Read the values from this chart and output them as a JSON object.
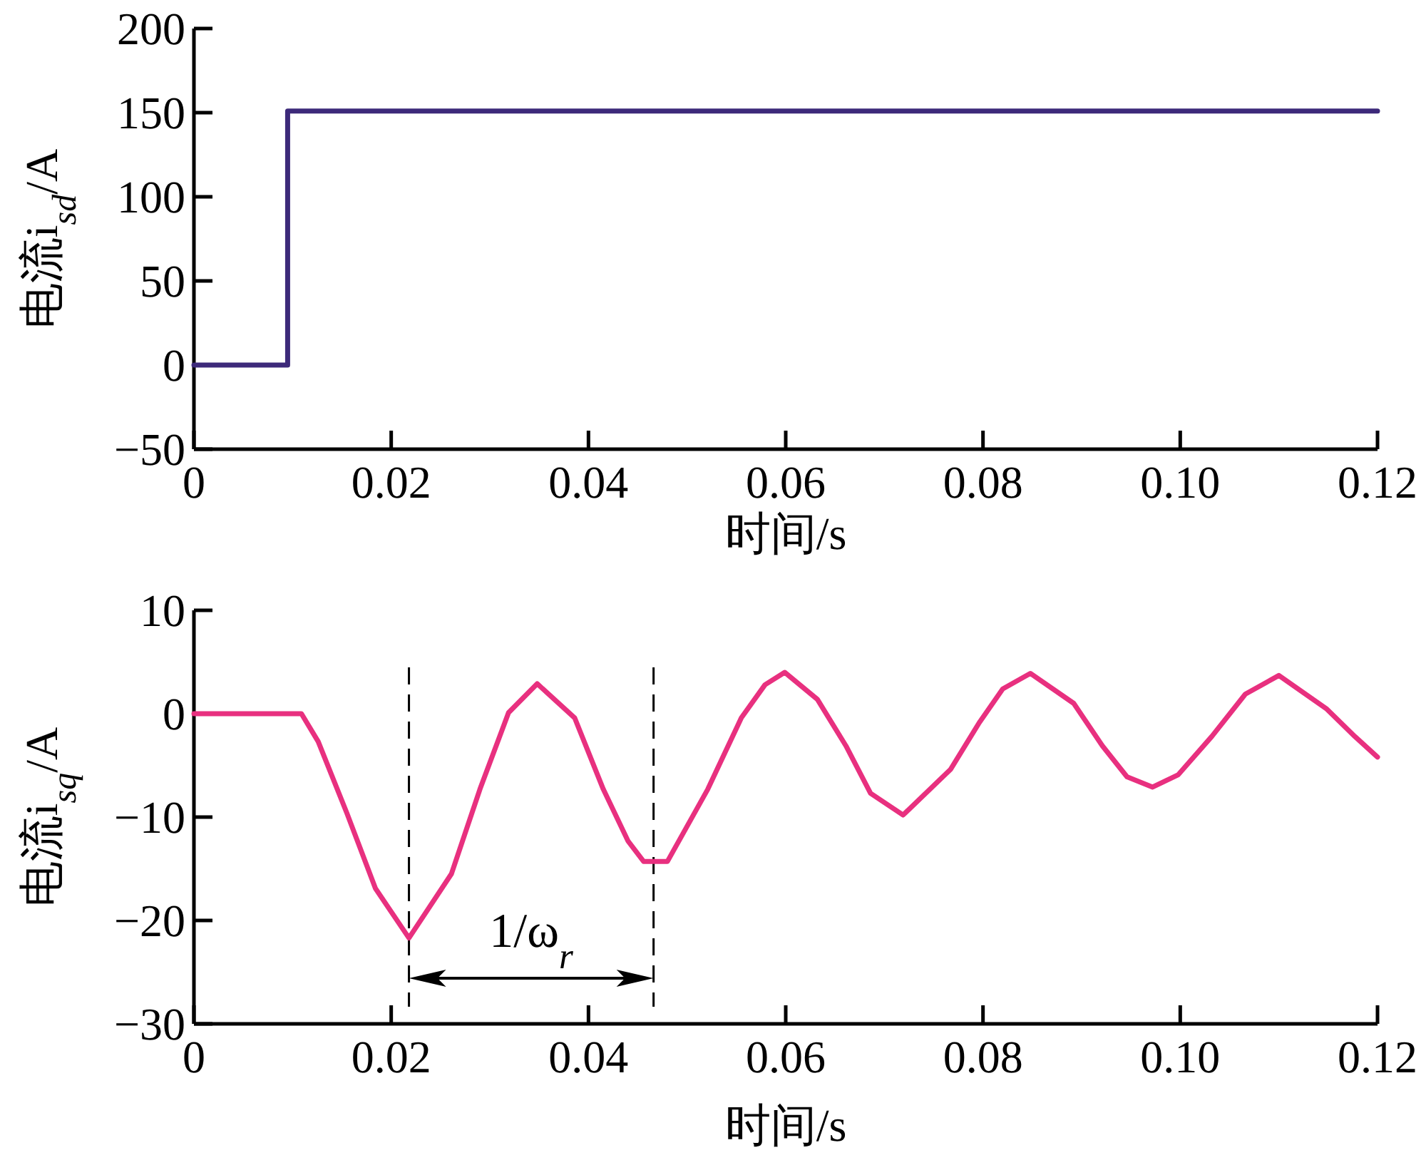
{
  "chart_data": [
    {
      "type": "line",
      "ylabel": "电流i$_{sd}$/A",
      "xlabel": "时间/s",
      "xlim": [
        0,
        0.12
      ],
      "ylim": [
        -50,
        200
      ],
      "xticks": [
        0,
        0.02,
        0.04,
        0.06,
        0.08,
        {
          "value": 0.1,
          "label": "0.10"
        },
        0.12
      ],
      "yticks": [
        -50,
        0,
        50,
        100,
        150,
        200
      ],
      "grid": false,
      "marker": "none",
      "line_style": "solid",
      "series": [
        {
          "color": "#3d2a7a",
          "x": [
            0,
            0.0095,
            0.0095,
            0.12
          ],
          "values": [
            0,
            0,
            151,
            151
          ]
        }
      ]
    },
    {
      "type": "line",
      "ylabel": "电流i$_{sq}$/A",
      "xlabel": "时间/s",
      "xlim": [
        0,
        0.12
      ],
      "ylim": [
        -30,
        10
      ],
      "xticks": [
        0,
        0.02,
        0.04,
        0.06,
        0.08,
        {
          "value": 0.1,
          "label": "0.10"
        },
        0.12
      ],
      "yticks": [
        -30,
        -20,
        -10,
        0,
        10
      ],
      "grid": false,
      "marker": "none",
      "line_style": "solid",
      "ref_lines": [
        {
          "axis": "x",
          "value": 0.0218,
          "line_style": "dashed",
          "color": "#000000"
        },
        {
          "axis": "x",
          "value": 0.0466,
          "line_style": "dashed",
          "color": "#000000"
        }
      ],
      "annotations": [
        "1/ω$_{r}$"
      ],
      "series": [
        {
          "color": "#e8307f",
          "x": [
            0,
            0.0109,
            0.0126,
            0.0155,
            0.0184,
            0.0218,
            0.0261,
            0.029,
            0.0319,
            0.0348,
            0.0386,
            0.0415,
            0.044,
            0.0456,
            0.0466,
            0.048,
            0.0521,
            0.0555,
            0.0579,
            0.0599,
            0.0632,
            0.0661,
            0.0686,
            0.0719,
            0.0767,
            0.0796,
            0.082,
            0.0848,
            0.0892,
            0.0921,
            0.0946,
            0.0972,
            0.0998,
            0.1032,
            0.1066,
            0.11,
            0.1148,
            0.1177,
            0.12
          ],
          "values": [
            0,
            0,
            -2.7,
            -9.6,
            -16.9,
            -21.7,
            -15.5,
            -7.3,
            0.1,
            2.9,
            -0.4,
            -7.3,
            -12.3,
            -14.3,
            -14.3,
            -14.3,
            -7.3,
            -0.4,
            2.8,
            4.0,
            1.4,
            -3.1,
            -7.7,
            -9.8,
            -5.4,
            -0.9,
            2.4,
            3.9,
            1.0,
            -3.1,
            -6.1,
            -7.1,
            -5.9,
            -2.2,
            1.9,
            3.7,
            0.5,
            -2.2,
            -4.2
          ]
        }
      ]
    }
  ]
}
